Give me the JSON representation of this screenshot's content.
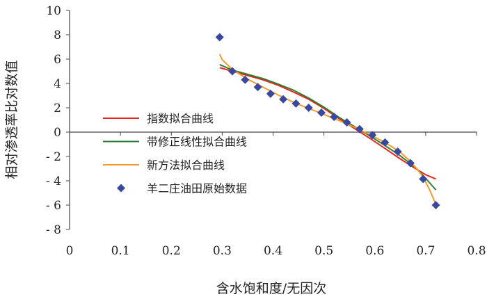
{
  "chart_data": {
    "type": "line",
    "xlabel": "含水饱和度/无因次",
    "ylabel": "相对渗透率比对数值",
    "xlim": [
      0,
      0.8
    ],
    "ylim": [
      -8,
      10
    ],
    "x_ticks": [
      0,
      0.1,
      0.2,
      0.3,
      0.4,
      0.5,
      0.6,
      0.7,
      0.8
    ],
    "y_ticks": [
      10,
      8,
      6,
      4,
      2,
      0,
      -2,
      -4,
      -6,
      -8
    ],
    "x_tick_labels": [
      "0",
      "0.1",
      "0.2",
      "0.3",
      "0.4",
      "0.5",
      "0.6",
      "0.7",
      "0.8"
    ],
    "y_tick_labels": [
      "10",
      "8",
      "6",
      "4",
      "2",
      "0",
      "- 2",
      "- 4",
      "- 6",
      "- 8"
    ],
    "grid": false,
    "legend_position": "left-center",
    "series": [
      {
        "name": "指数拟合曲线",
        "kind": "line",
        "color": "#e8281e",
        "x": [
          0.295,
          0.32,
          0.35,
          0.38,
          0.41,
          0.44,
          0.47,
          0.5,
          0.53,
          0.56,
          0.59,
          0.62,
          0.65,
          0.68,
          0.7,
          0.72
        ],
        "y": [
          5.3,
          5.0,
          4.65,
          4.3,
          3.85,
          3.3,
          2.7,
          1.95,
          1.1,
          0.3,
          -0.5,
          -1.35,
          -2.2,
          -3.0,
          -3.5,
          -3.85
        ]
      },
      {
        "name": "带修正线性拟合曲线",
        "kind": "line",
        "color": "#2e7d32",
        "x": [
          0.295,
          0.32,
          0.35,
          0.38,
          0.41,
          0.44,
          0.47,
          0.5,
          0.53,
          0.56,
          0.59,
          0.62,
          0.65,
          0.68,
          0.7,
          0.72
        ],
        "y": [
          5.55,
          5.1,
          4.75,
          4.4,
          3.95,
          3.45,
          2.8,
          2.05,
          1.2,
          0.45,
          -0.3,
          -1.1,
          -1.95,
          -2.9,
          -3.8,
          -4.75
        ]
      },
      {
        "name": "新方法拟合曲线",
        "kind": "line",
        "color": "#f59b2e",
        "x": [
          0.295,
          0.3,
          0.32,
          0.35,
          0.38,
          0.41,
          0.44,
          0.47,
          0.5,
          0.53,
          0.56,
          0.59,
          0.62,
          0.65,
          0.67,
          0.69,
          0.7,
          0.71,
          0.72
        ],
        "y": [
          6.4,
          5.95,
          5.15,
          4.35,
          3.7,
          3.05,
          2.45,
          1.95,
          1.45,
          0.95,
          0.4,
          -0.2,
          -0.85,
          -1.65,
          -2.4,
          -3.4,
          -4.1,
          -4.95,
          -5.95
        ]
      },
      {
        "name": "羊二庄油田原始数据",
        "kind": "scatter",
        "color": "#3949a0",
        "x": [
          0.295,
          0.32,
          0.345,
          0.37,
          0.395,
          0.42,
          0.445,
          0.47,
          0.495,
          0.52,
          0.545,
          0.57,
          0.595,
          0.62,
          0.645,
          0.67,
          0.695,
          0.72
        ],
        "y": [
          7.8,
          5.0,
          4.3,
          3.7,
          3.15,
          2.7,
          2.35,
          2.0,
          1.6,
          1.25,
          0.8,
          0.25,
          -0.25,
          -0.85,
          -1.6,
          -2.55,
          -3.85,
          -6.0
        ]
      }
    ]
  }
}
